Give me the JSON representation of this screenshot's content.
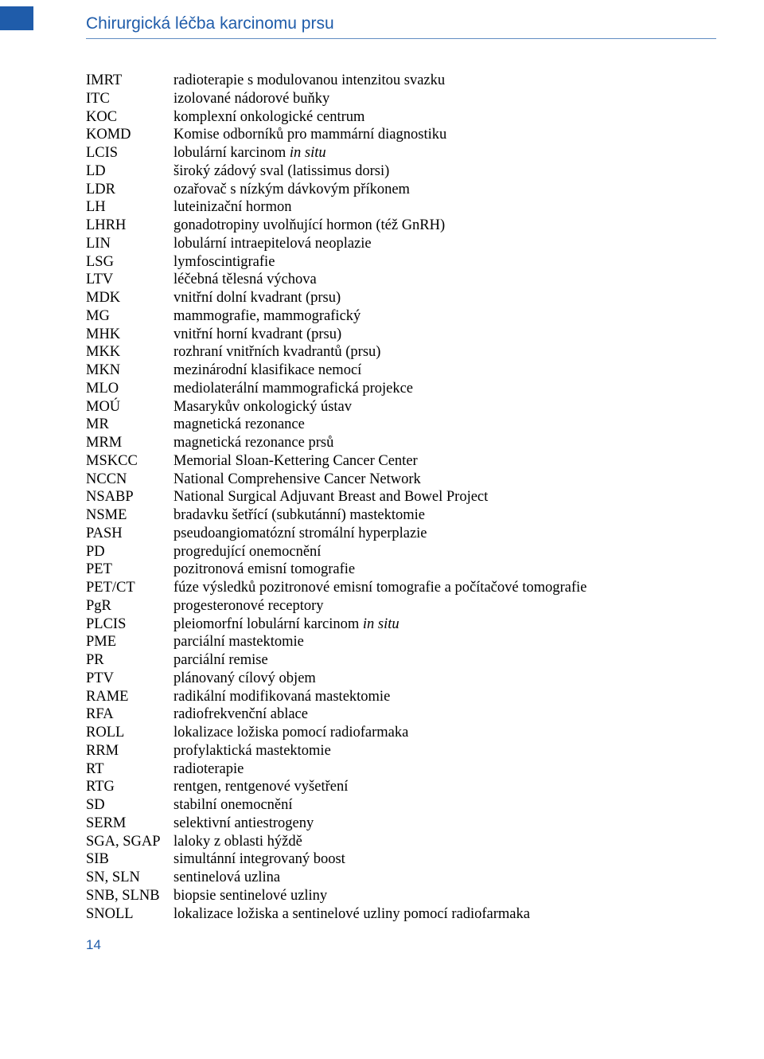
{
  "header": {
    "title": "Chirurgická léčba karcinomu prsu"
  },
  "footer": {
    "page_number": "14"
  },
  "colors": {
    "accent": "#1f5caa",
    "text": "#000000",
    "background": "#ffffff"
  },
  "abbreviations": [
    {
      "abbr": "IMRT",
      "def": "radioterapie s modulovanou intenzitou svazku"
    },
    {
      "abbr": "ITC",
      "def": "izolované nádorové buňky"
    },
    {
      "abbr": "KOC",
      "def": "komplexní onkologické centrum"
    },
    {
      "abbr": "KOMD",
      "def": "Komise odborníků pro mammární diagnostiku"
    },
    {
      "abbr": "LCIS",
      "def_html": "lobulární karcinom <em>in situ</em>"
    },
    {
      "abbr": "LD",
      "def": "široký zádový sval (latissimus dorsi)"
    },
    {
      "abbr": "LDR",
      "def": "ozařovač s nízkým dávkovým příkonem"
    },
    {
      "abbr": "LH",
      "def": "luteinizační hormon"
    },
    {
      "abbr": "LHRH",
      "def": "gonadotropiny uvolňující hormon (též GnRH)"
    },
    {
      "abbr": "LIN",
      "def": "lobulární intraepitelová neoplazie"
    },
    {
      "abbr": "LSG",
      "def": "lymfoscintigrafie"
    },
    {
      "abbr": "LTV",
      "def": "léčebná tělesná výchova"
    },
    {
      "abbr": "MDK",
      "def": "vnitřní dolní kvadrant (prsu)"
    },
    {
      "abbr": "MG",
      "def": "mammografie, mammografický"
    },
    {
      "abbr": "MHK",
      "def": "vnitřní horní kvadrant (prsu)"
    },
    {
      "abbr": "MKK",
      "def": "rozhraní vnitřních kvadrantů (prsu)"
    },
    {
      "abbr": "MKN",
      "def": "mezinárodní klasifikace nemocí"
    },
    {
      "abbr": "MLO",
      "def": "mediolaterální mammografická projekce"
    },
    {
      "abbr": "MOÚ",
      "def": "Masarykův onkologický ústav"
    },
    {
      "abbr": "MR",
      "def": "magnetická rezonance"
    },
    {
      "abbr": "MRM",
      "def": "magnetická rezonance prsů"
    },
    {
      "abbr": "MSKCC",
      "def": "Memorial Sloan-Kettering Cancer Center"
    },
    {
      "abbr": "NCCN",
      "def": "National Comprehensive Cancer Network"
    },
    {
      "abbr": "NSABP",
      "def": "National Surgical Adjuvant Breast and Bowel Project"
    },
    {
      "abbr": "NSME",
      "def": "bradavku šetřící (subkutánní) mastektomie"
    },
    {
      "abbr": "PASH",
      "def": "pseudoangiomatózní stromální hyperplazie"
    },
    {
      "abbr": "PD",
      "def": "progredující onemocnění"
    },
    {
      "abbr": "PET",
      "def": "pozitronová emisní tomografie"
    },
    {
      "abbr": "PET/CT",
      "def": "fúze výsledků pozitronové emisní tomografie a počítačové tomografie"
    },
    {
      "abbr": "PgR",
      "def": "progesteronové receptory"
    },
    {
      "abbr": "PLCIS",
      "def_html": "pleiomorfní lobulární karcinom <em>in situ</em>"
    },
    {
      "abbr": "PME",
      "def": "parciální mastektomie"
    },
    {
      "abbr": "PR",
      "def": "parciální remise"
    },
    {
      "abbr": "PTV",
      "def": "plánovaný cílový objem"
    },
    {
      "abbr": "RAME",
      "def": "radikální modifikovaná mastektomie"
    },
    {
      "abbr": "RFA",
      "def": "radiofrekvenční ablace"
    },
    {
      "abbr": "ROLL",
      "def": "lokalizace ložiska pomocí radiofarmaka"
    },
    {
      "abbr": "RRM",
      "def": "profylaktická mastektomie"
    },
    {
      "abbr": "RT",
      "def": "radioterapie"
    },
    {
      "abbr": "RTG",
      "def": "rentgen, rentgenové vyšetření"
    },
    {
      "abbr": "SD",
      "def": "stabilní onemocnění"
    },
    {
      "abbr": "SERM",
      "def": "selektivní antiestrogeny"
    },
    {
      "abbr": "SGA, SGAP",
      "def": "laloky z oblasti hýždě"
    },
    {
      "abbr": "SIB",
      "def": "simultánní integrovaný boost"
    },
    {
      "abbr": "SN, SLN",
      "def": "sentinelová uzlina"
    },
    {
      "abbr": "SNB, SLNB",
      "def": "biopsie sentinelové uzliny"
    },
    {
      "abbr": "SNOLL",
      "def": "lokalizace ložiska a sentinelové uzliny pomocí radiofarmaka"
    }
  ]
}
